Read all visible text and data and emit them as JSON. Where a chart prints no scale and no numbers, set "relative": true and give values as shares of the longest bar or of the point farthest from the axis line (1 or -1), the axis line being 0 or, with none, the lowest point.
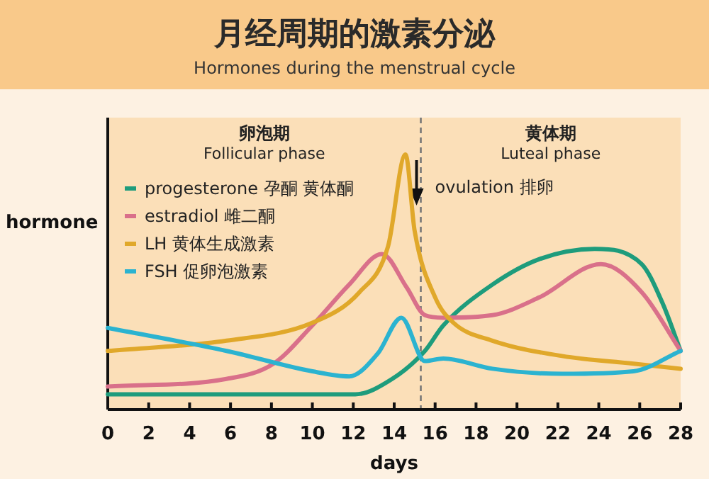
{
  "chart_data": {
    "type": "line",
    "title": "月经周期的激素分泌",
    "subtitle": "Hormones during the menstrual cycle",
    "xlabel": "days",
    "ylabel": "hormone",
    "relative": true,
    "xlim": [
      0,
      28
    ],
    "xticks": [
      0,
      2,
      4,
      6,
      8,
      10,
      12,
      14,
      16,
      18,
      20,
      22,
      24,
      26,
      28
    ],
    "legend": "top left",
    "grid": false,
    "marker": "none",
    "line_style": "solid",
    "series": [
      {
        "name": "progesterone 孕酮 黄体酮",
        "color": "#1e9c7c",
        "x": [
          0,
          5.8,
          10,
          12.1,
          13.9,
          15.5,
          16.4,
          18.8,
          21.1,
          23.8,
          26.1,
          27.1,
          28
        ],
        "values": [
          0.06,
          0.06,
          0.06,
          0.06,
          0.12,
          0.23,
          0.33,
          0.49,
          0.59,
          0.63,
          0.57,
          0.42,
          0.23
        ]
      },
      {
        "name": "estradiol 雌二酮",
        "color": "#d9708a",
        "x": [
          0,
          5.8,
          8.1,
          10,
          11.8,
          13.4,
          14.6,
          15.5,
          16.4,
          18.8,
          21.1,
          24.1,
          26.1,
          28
        ],
        "values": [
          0.09,
          0.12,
          0.18,
          0.33,
          0.49,
          0.61,
          0.48,
          0.37,
          0.36,
          0.37,
          0.44,
          0.57,
          0.46,
          0.23
        ]
      },
      {
        "name": "LH 黄体生成激素",
        "color": "#e0a82a",
        "x": [
          0,
          5.8,
          10,
          12.3,
          13.7,
          14.55,
          15,
          16,
          16.9,
          18.8,
          22.2,
          25.7,
          28
        ],
        "values": [
          0.23,
          0.27,
          0.34,
          0.46,
          0.64,
          1,
          0.7,
          0.44,
          0.34,
          0.27,
          0.21,
          0.18,
          0.16
        ]
      },
      {
        "name": "FSH 促卵泡激素",
        "color": "#2bb3d0",
        "x": [
          0,
          5.8,
          10,
          11.8,
          13.2,
          14.35,
          15.5,
          16.4,
          18.8,
          22.2,
          25.7,
          28
        ],
        "values": [
          0.32,
          0.23,
          0.15,
          0.13,
          0.22,
          0.36,
          0.19,
          0.2,
          0.16,
          0.14,
          0.15,
          0.23
        ]
      }
    ],
    "bands": [
      {
        "axis": "x",
        "from": 0,
        "to": 15.3,
        "label": "卵泡期\nFollicular phase",
        "color": "#fbdfb8"
      },
      {
        "axis": "x",
        "from": 15.3,
        "to": 28,
        "label": "黄体期\nLuteal phase",
        "color": "#fbdfb8"
      }
    ],
    "ref_lines": [
      {
        "axis": "x",
        "value": 15.3,
        "label": "ovulation 排卵",
        "line_style": "dashed",
        "color": "#777777"
      }
    ]
  }
}
